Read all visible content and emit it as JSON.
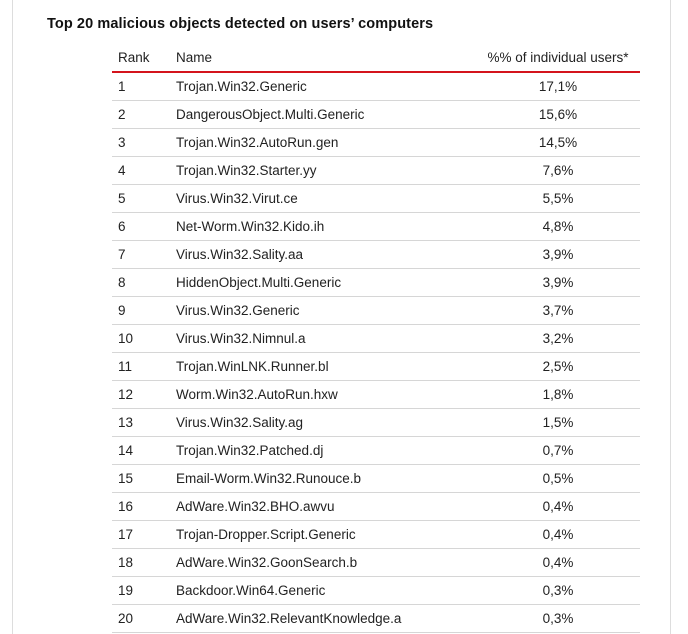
{
  "title": "Top 20 malicious objects detected on users’ computers",
  "table": {
    "headers": {
      "rank": "Rank",
      "name": "Name",
      "percent": "%% of individual users*"
    },
    "rows": [
      {
        "rank": "1",
        "name": "Trojan.Win32.Generic",
        "percent": "17,1%"
      },
      {
        "rank": "2",
        "name": "DangerousObject.Multi.Generic",
        "percent": "15,6%"
      },
      {
        "rank": "3",
        "name": "Trojan.Win32.AutoRun.gen",
        "percent": "14,5%"
      },
      {
        "rank": "4",
        "name": "Trojan.Win32.Starter.yy",
        "percent": "7,6%"
      },
      {
        "rank": "5",
        "name": "Virus.Win32.Virut.ce",
        "percent": "5,5%"
      },
      {
        "rank": "6",
        "name": "Net-Worm.Win32.Kido.ih",
        "percent": "4,8%"
      },
      {
        "rank": "7",
        "name": "Virus.Win32.Sality.aa",
        "percent": "3,9%"
      },
      {
        "rank": "8",
        "name": "HiddenObject.Multi.Generic",
        "percent": "3,9%"
      },
      {
        "rank": "9",
        "name": "Virus.Win32.Generic",
        "percent": "3,7%"
      },
      {
        "rank": "10",
        "name": "Virus.Win32.Nimnul.a",
        "percent": "3,2%"
      },
      {
        "rank": "11",
        "name": "Trojan.WinLNK.Runner.bl",
        "percent": "2,5%"
      },
      {
        "rank": "12",
        "name": "Worm.Win32.AutoRun.hxw",
        "percent": "1,8%"
      },
      {
        "rank": "13",
        "name": "Virus.Win32.Sality.ag",
        "percent": "1,5%"
      },
      {
        "rank": "14",
        "name": "Trojan.Win32.Patched.dj",
        "percent": "0,7%"
      },
      {
        "rank": "15",
        "name": "Email-Worm.Win32.Runouce.b",
        "percent": "0,5%"
      },
      {
        "rank": "16",
        "name": "AdWare.Win32.BHO.awvu",
        "percent": "0,4%"
      },
      {
        "rank": "17",
        "name": "Trojan-Dropper.Script.Generic",
        "percent": "0,4%"
      },
      {
        "rank": "18",
        "name": "AdWare.Win32.GoonSearch.b",
        "percent": "0,4%"
      },
      {
        "rank": "19",
        "name": "Backdoor.Win64.Generic",
        "percent": "0,3%"
      },
      {
        "rank": "20",
        "name": "AdWare.Win32.RelevantKnowledge.a",
        "percent": "0,3%"
      }
    ]
  }
}
